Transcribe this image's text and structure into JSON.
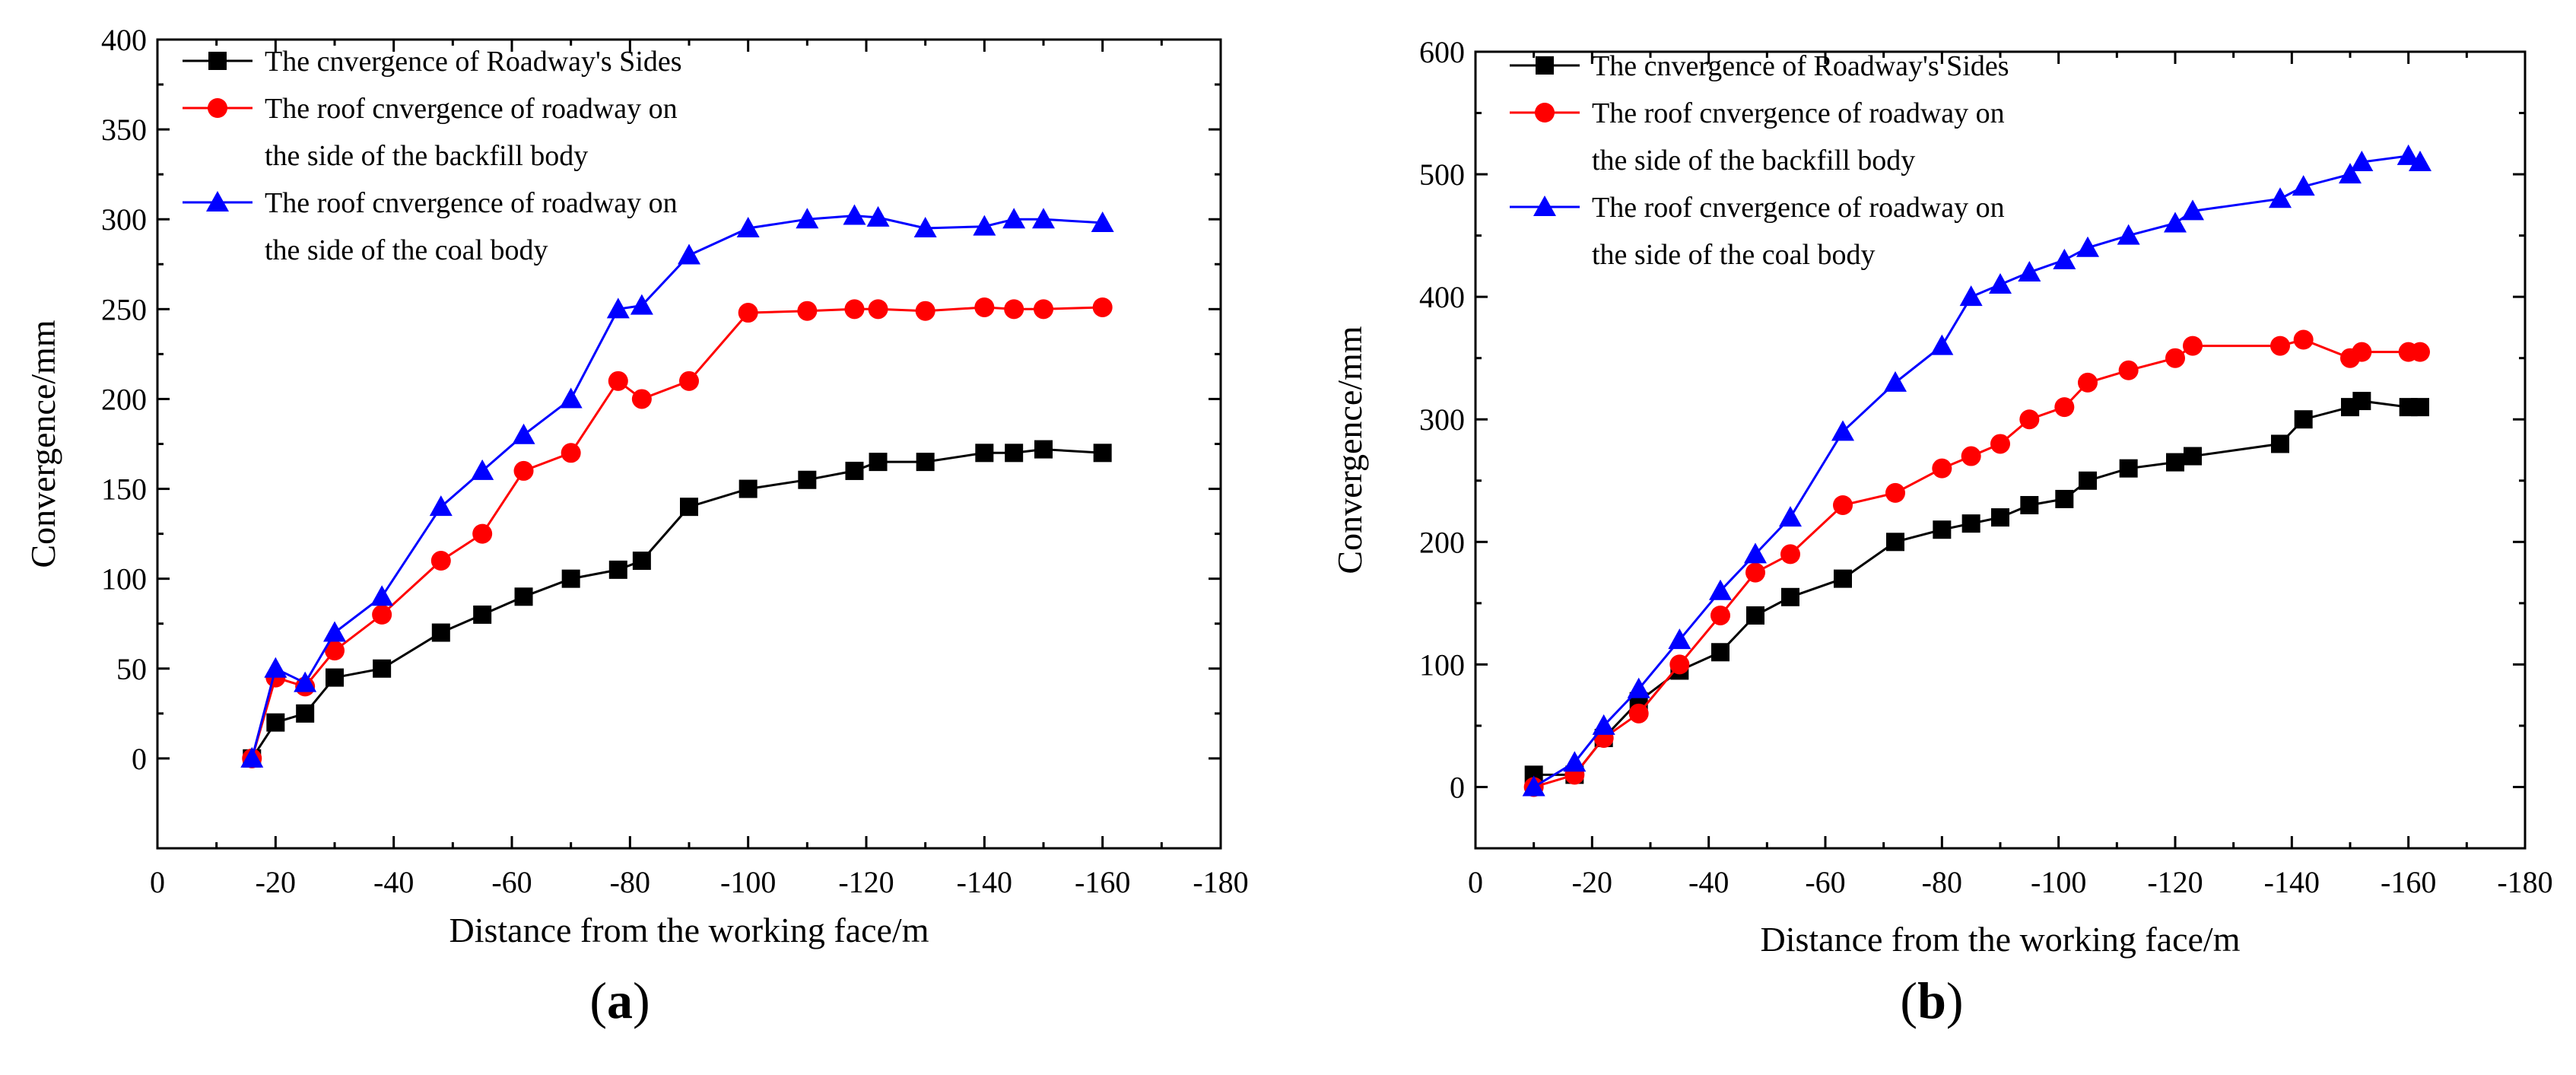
{
  "colors": {
    "black": "#000000",
    "red": "#ff0000",
    "blue": "#0000ff"
  },
  "chart_data": [
    {
      "type": "line",
      "panel_label": "(a)",
      "panel_letter": "a",
      "xlabel": "Distance from the working face/m",
      "ylabel": "Convergence/mm",
      "xlim": [
        0,
        -180
      ],
      "ylim": [
        -50,
        400
      ],
      "xticks": [
        0,
        -20,
        -40,
        -60,
        -80,
        -100,
        -120,
        -140,
        -160,
        -180
      ],
      "yticks": [
        0,
        50,
        100,
        150,
        200,
        250,
        300,
        350,
        400
      ],
      "legend_position": "top-left",
      "series": [
        {
          "name": "The  cnvergence of Roadway's Sides",
          "legend_lines": [
            "The  cnvergence of Roadway's Sides"
          ],
          "color": "#000000",
          "marker": "square",
          "x": [
            -16,
            -20,
            -25,
            -30,
            -38,
            -48,
            -55,
            -62,
            -70,
            -78,
            -82,
            -90,
            -100,
            -110,
            -118,
            -122,
            -130,
            -140,
            -145,
            -150,
            -160
          ],
          "y": [
            0,
            20,
            25,
            45,
            50,
            70,
            80,
            90,
            100,
            105,
            110,
            140,
            150,
            155,
            160,
            165,
            165,
            170,
            170,
            172,
            170
          ]
        },
        {
          "name": "The roof cnvergence of  roadway on the side of the backfill body",
          "legend_lines": [
            "The roof cnvergence of  roadway on",
            "the side of the backfill body"
          ],
          "color": "#ff0000",
          "marker": "circle",
          "x": [
            -16,
            -20,
            -25,
            -30,
            -38,
            -48,
            -55,
            -62,
            -70,
            -78,
            -82,
            -90,
            -100,
            -110,
            -118,
            -122,
            -130,
            -140,
            -145,
            -150,
            -160
          ],
          "y": [
            0,
            45,
            40,
            60,
            80,
            110,
            125,
            160,
            170,
            210,
            200,
            210,
            248,
            249,
            250,
            250,
            249,
            251,
            250,
            250,
            251
          ]
        },
        {
          "name": "The roof cnvergence of  roadway on the side of the coal body",
          "legend_lines": [
            "The roof cnvergence of  roadway on",
            "the side of the coal body"
          ],
          "color": "#0000ff",
          "marker": "triangle",
          "x": [
            -16,
            -20,
            -25,
            -30,
            -38,
            -48,
            -55,
            -62,
            -70,
            -78,
            -82,
            -90,
            -100,
            -110,
            -118,
            -122,
            -130,
            -140,
            -145,
            -150,
            -160
          ],
          "y": [
            0,
            50,
            42,
            70,
            90,
            140,
            160,
            180,
            200,
            250,
            252,
            280,
            295,
            300,
            302,
            301,
            295,
            296,
            300,
            300,
            298
          ]
        }
      ]
    },
    {
      "type": "line",
      "panel_label": "(b)",
      "panel_letter": "b",
      "xlabel": "Distance from the working face/m",
      "ylabel": "Convergence/mm",
      "xlim": [
        0,
        -180
      ],
      "ylim": [
        -50,
        600
      ],
      "xticks": [
        0,
        -20,
        -40,
        -60,
        -80,
        -100,
        -120,
        -140,
        -160,
        -180
      ],
      "yticks": [
        0,
        100,
        200,
        300,
        400,
        500,
        600
      ],
      "legend_position": "top-left",
      "series": [
        {
          "name": "The  cnvergence of Roadway's Sides",
          "legend_lines": [
            "The  cnvergence of Roadway's Sides"
          ],
          "color": "#000000",
          "marker": "square",
          "x": [
            -10,
            -17,
            -22,
            -28,
            -35,
            -42,
            -48,
            -54,
            -63,
            -72,
            -80,
            -85,
            -90,
            -95,
            -101,
            -105,
            -112,
            -120,
            -123,
            -138,
            -142,
            -150,
            -152,
            -160,
            -162
          ],
          "y": [
            10,
            10,
            40,
            70,
            95,
            110,
            140,
            155,
            170,
            200,
            210,
            215,
            220,
            230,
            235,
            250,
            260,
            265,
            270,
            280,
            300,
            310,
            315,
            310,
            310
          ]
        },
        {
          "name": "The roof cnvergence of  roadway on the side of the backfill body",
          "legend_lines": [
            "The roof cnvergence of  roadway on",
            "the side of the backfill body"
          ],
          "color": "#ff0000",
          "marker": "circle",
          "x": [
            -10,
            -17,
            -22,
            -28,
            -35,
            -42,
            -48,
            -54,
            -63,
            -72,
            -80,
            -85,
            -90,
            -95,
            -101,
            -105,
            -112,
            -120,
            -123,
            -138,
            -142,
            -150,
            -152,
            -160,
            -162
          ],
          "y": [
            0,
            10,
            40,
            60,
            100,
            140,
            175,
            190,
            230,
            240,
            260,
            270,
            280,
            300,
            310,
            330,
            340,
            350,
            360,
            360,
            365,
            350,
            355,
            355,
            355
          ]
        },
        {
          "name": "The roof cnvergence of  roadway on the side of the coal body",
          "legend_lines": [
            "The roof cnvergence of  roadway on",
            "the side of the coal body"
          ],
          "color": "#0000ff",
          "marker": "triangle",
          "x": [
            -10,
            -17,
            -22,
            -28,
            -35,
            -42,
            -48,
            -54,
            -63,
            -72,
            -80,
            -85,
            -90,
            -95,
            -101,
            -105,
            -112,
            -120,
            -123,
            -138,
            -142,
            -150,
            -152,
            -160,
            -162
          ],
          "y": [
            0,
            20,
            50,
            80,
            120,
            160,
            190,
            220,
            290,
            330,
            360,
            400,
            410,
            420,
            430,
            440,
            450,
            460,
            470,
            480,
            490,
            500,
            510,
            515,
            510
          ]
        }
      ]
    }
  ]
}
